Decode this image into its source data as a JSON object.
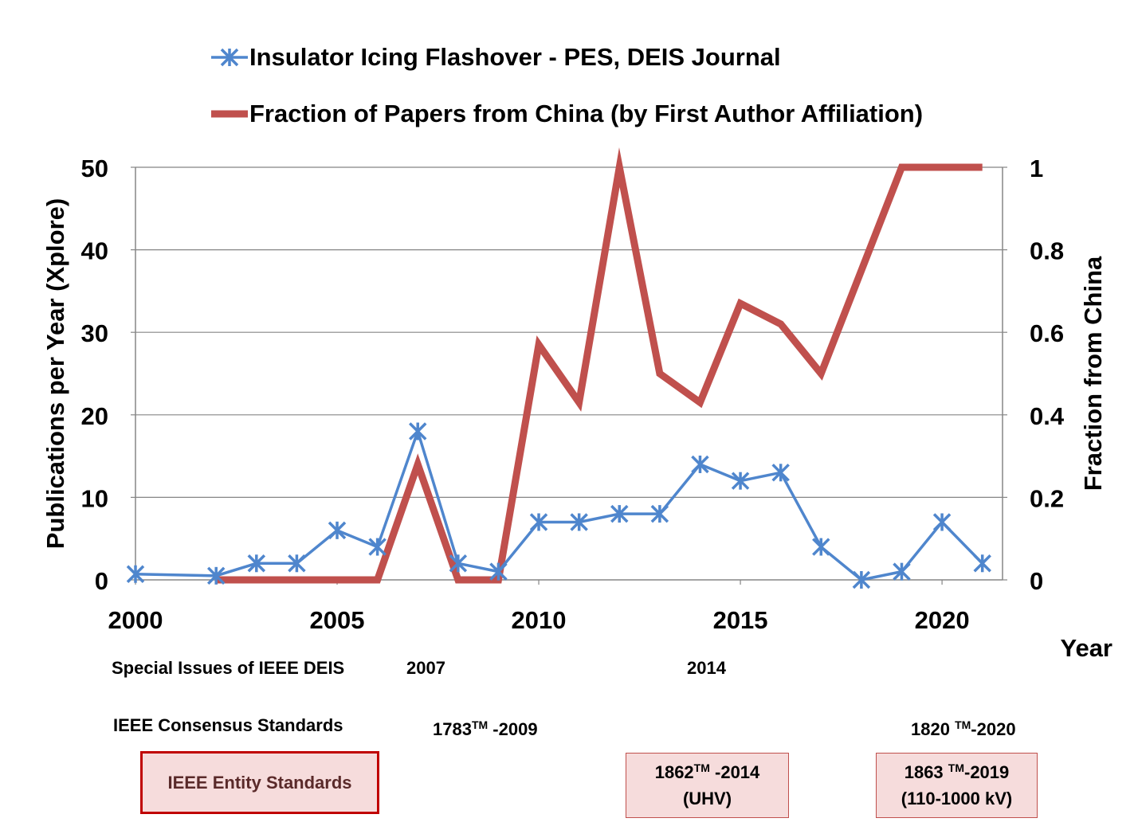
{
  "chart_data": {
    "type": "line",
    "x": [
      2000,
      2002,
      2003,
      2004,
      2005,
      2006,
      2007,
      2008,
      2009,
      2010,
      2011,
      2012,
      2013,
      2014,
      2015,
      2016,
      2017,
      2018,
      2019,
      2020,
      2021
    ],
    "series": [
      {
        "name": "Insulator Icing Flashover - PES, DEIS Journal",
        "axis": "left",
        "color": "#4f86cd",
        "marker": "asterisk",
        "x": [
          2000,
          2002,
          2003,
          2004,
          2005,
          2006,
          2007,
          2008,
          2009,
          2010,
          2011,
          2012,
          2013,
          2014,
          2015,
          2016,
          2017,
          2018,
          2019,
          2020,
          2021
        ],
        "values": [
          0.7,
          0.5,
          2,
          2,
          6,
          4,
          18,
          2,
          1,
          7,
          7,
          8,
          8,
          14,
          12,
          13,
          4,
          0,
          1,
          7,
          2
        ]
      },
      {
        "name": "Fraction of Papers from China (by First Author Affiliation)",
        "axis": "right",
        "color": "#c0504d",
        "marker": "none",
        "x": [
          2002,
          2003,
          2004,
          2005,
          2006,
          2007,
          2008,
          2009,
          2010,
          2011,
          2012,
          2013,
          2014,
          2015,
          2016,
          2017,
          2018,
          2019,
          2020,
          2021
        ],
        "values": [
          0,
          0,
          0,
          0,
          0,
          0.28,
          0,
          0,
          0.57,
          0.43,
          1.0,
          0.5,
          0.43,
          0.67,
          0.62,
          0.5,
          0.75,
          1.0,
          1.0,
          1.0
        ]
      }
    ],
    "ylabel": "Publications per Year (Xplore)",
    "y2label": "Fraction from China",
    "xlabel": "Year",
    "xlim": [
      2000,
      2021.5
    ],
    "ylim": [
      0,
      50
    ],
    "y2lim": [
      0,
      1
    ],
    "xticks": [
      "2000",
      "2005",
      "2010",
      "2015",
      "2020"
    ],
    "yticks": [
      "0",
      "10",
      "20",
      "30",
      "40",
      "50"
    ],
    "y2ticks": [
      "0",
      "0.2",
      "0.4",
      "0.6",
      "0.8",
      "1"
    ],
    "grid": "horizontal",
    "legend_position": "top"
  },
  "annotations": {
    "special_issues_label": "Special Issues of IEEE DEIS",
    "special_issue_2007": "2007",
    "special_issue_2014": "2014",
    "consensus_label": "IEEE Consensus Standards",
    "std_1783_num": "1783",
    "std_1783_tm": "TM",
    "std_1783_year": " -2009",
    "std_1820_num": "1820 ",
    "std_1820_tm": "TM",
    "std_1820_year": "-2020",
    "entity_label": "IEEE Entity Standards",
    "std_1862_num": "1862",
    "std_1862_tm": "TM",
    "std_1862_year": " -2014",
    "std_1862_note": "(UHV)",
    "std_1863_num": "1863 ",
    "std_1863_tm": "TM",
    "std_1863_year": "-2019",
    "std_1863_note": "(110-1000 kV)"
  }
}
